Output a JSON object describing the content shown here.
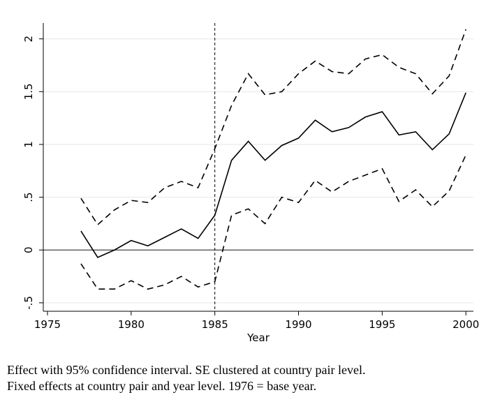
{
  "chart_data": {
    "type": "line",
    "x_label": "Year",
    "x": [
      1977,
      1978,
      1979,
      1980,
      1981,
      1982,
      1983,
      1984,
      1985,
      1986,
      1987,
      1988,
      1989,
      1990,
      1991,
      1992,
      1993,
      1994,
      1995,
      1996,
      1997,
      1998,
      1999,
      2000
    ],
    "series": [
      {
        "color": "#000000",
        "dash": "solid",
        "values": [
          0.18,
          -0.07,
          0,
          0.09,
          0.04,
          0.12,
          0.2,
          0.11,
          0.33,
          0.85,
          1.03,
          0.85,
          0.99,
          1.06,
          1.23,
          1.12,
          1.16,
          1.26,
          1.31,
          1.09,
          1.12,
          0.95,
          1.1,
          1.49
        ]
      },
      {
        "color": "#000000",
        "dash": "dashed",
        "values": [
          0.49,
          0.24,
          0.38,
          0.47,
          0.45,
          0.59,
          0.65,
          0.59,
          0.96,
          1.37,
          1.67,
          1.47,
          1.5,
          1.67,
          1.79,
          1.69,
          1.67,
          1.81,
          1.85,
          1.73,
          1.67,
          1.48,
          1.65,
          2.09
        ]
      },
      {
        "color": "#000000",
        "dash": "dashed",
        "values": [
          -0.13,
          -0.37,
          -0.37,
          -0.29,
          -0.37,
          -0.33,
          -0.25,
          -0.35,
          -0.3,
          0.33,
          0.39,
          0.25,
          0.5,
          0.45,
          0.66,
          0.55,
          0.65,
          0.71,
          0.77,
          0.46,
          0.57,
          0.41,
          0.56,
          0.9
        ]
      }
    ],
    "xlim": [
      1974.75,
      2000.45
    ],
    "ylim": [
      -0.58,
      2.15
    ],
    "xticks": [
      1975,
      1980,
      1985,
      1990,
      1995,
      2000
    ],
    "yticks": [
      {
        "value": -0.5,
        "label": "-.5"
      },
      0,
      {
        "value": 0.5,
        "label": ".5"
      },
      1,
      1.5,
      2
    ],
    "grid": true,
    "yline": 0,
    "xline": 1985,
    "caption": [
      "Effect with 95% confidence interval. SE clustered at country pair level.",
      "Fixed effects at country pair and year level. 1976 = base year."
    ]
  }
}
